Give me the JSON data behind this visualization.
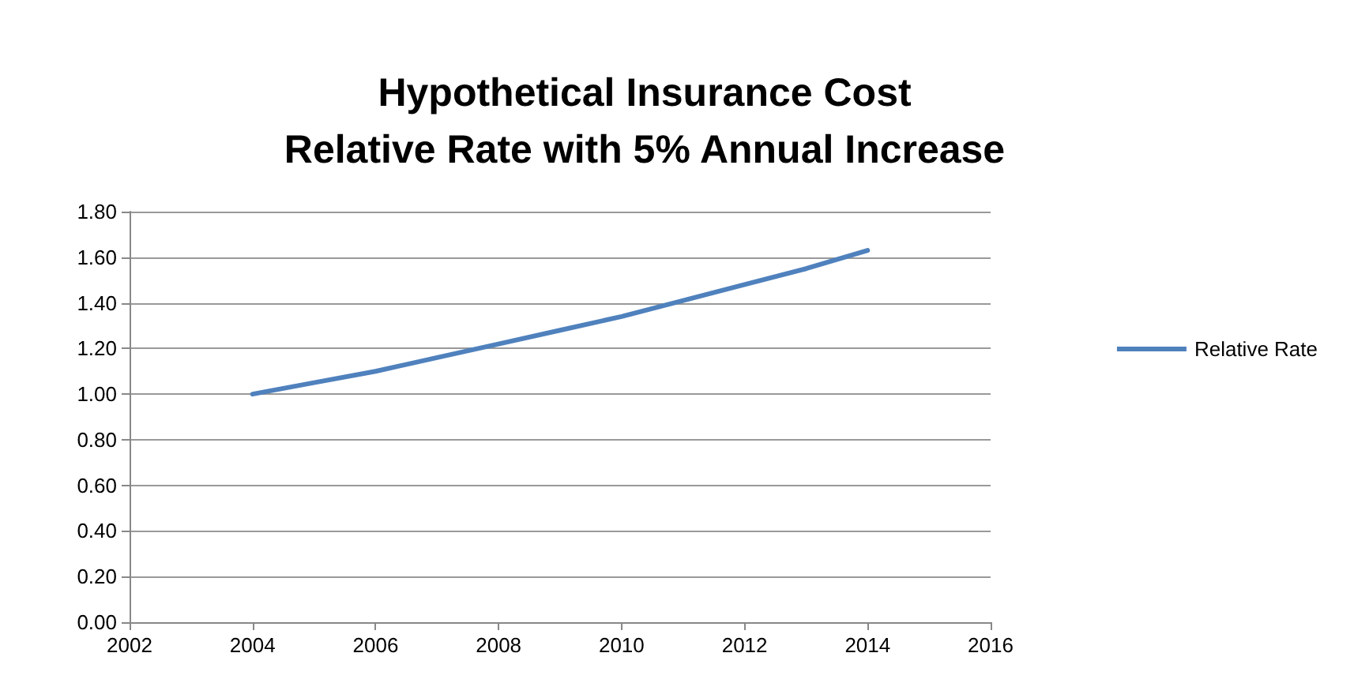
{
  "chart_data": {
    "type": "line",
    "title": "Hypothetical Insurance Cost\nRelative Rate with 5% Annual Increase",
    "x": [
      2004,
      2005,
      2006,
      2007,
      2008,
      2009,
      2010,
      2011,
      2012,
      2013,
      2014
    ],
    "series": [
      {
        "name": "Relative Rate",
        "color": "#4f81bd",
        "values": [
          1.0,
          1.05,
          1.1,
          1.16,
          1.22,
          1.28,
          1.34,
          1.41,
          1.48,
          1.55,
          1.63
        ]
      }
    ],
    "xlim": [
      2002,
      2016
    ],
    "xticks": [
      2002,
      2004,
      2006,
      2008,
      2010,
      2012,
      2014,
      2016
    ],
    "ylim": [
      0,
      1.8
    ],
    "yticks": [
      {
        "value": 0,
        "label": "0.00"
      },
      {
        "value": 0.2,
        "label": "0.20"
      },
      {
        "value": 0.4,
        "label": "0.40"
      },
      {
        "value": 0.6,
        "label": "0.60"
      },
      {
        "value": 0.8,
        "label": "0.80"
      },
      {
        "value": 1.0,
        "label": "1.00"
      },
      {
        "value": 1.2,
        "label": "1.20"
      },
      {
        "value": 1.4,
        "label": "1.40"
      },
      {
        "value": 1.6,
        "label": "1.60"
      },
      {
        "value": 1.8,
        "label": "1.80"
      }
    ],
    "grid": "y",
    "legend": "right",
    "marker": "none",
    "line_style": "solid"
  }
}
